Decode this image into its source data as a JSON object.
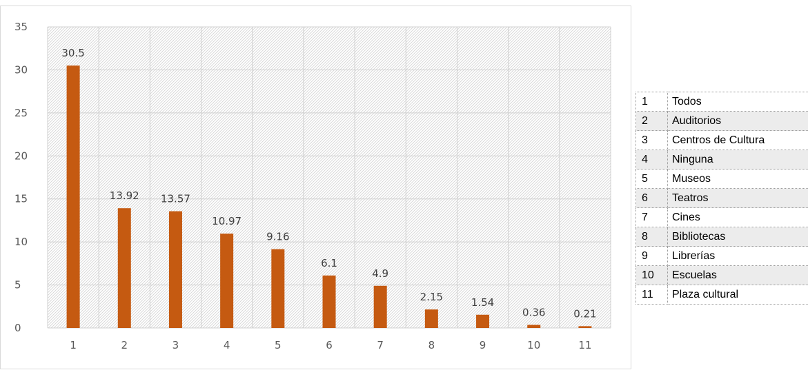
{
  "chart_data": {
    "type": "bar",
    "categories": [
      "1",
      "2",
      "3",
      "4",
      "5",
      "6",
      "7",
      "8",
      "9",
      "10",
      "11"
    ],
    "values": [
      30.5,
      13.92,
      13.57,
      10.97,
      9.16,
      6.1,
      4.9,
      2.15,
      1.54,
      0.36,
      0.21
    ],
    "data_labels": [
      "30.5",
      "13.92",
      "13.57",
      "10.97",
      "9.16",
      "6.1",
      "4.9",
      "2.15",
      "1.54",
      "0.36",
      "0.21"
    ],
    "y_ticks": [
      "0",
      "5",
      "10",
      "15",
      "20",
      "25",
      "30",
      "35"
    ],
    "ylim": [
      0,
      35
    ],
    "bar_color": "#C55A11",
    "grid": true,
    "title": "",
    "xlabel": "",
    "ylabel": ""
  },
  "legend_table": [
    {
      "num": "1",
      "label": "Todos"
    },
    {
      "num": "2",
      "label": "Auditorios"
    },
    {
      "num": "3",
      "label": "Centros de Cultura"
    },
    {
      "num": "4",
      "label": "Ninguna"
    },
    {
      "num": "5",
      "label": "Museos"
    },
    {
      "num": "6",
      "label": "Teatros"
    },
    {
      "num": "7",
      "label": "Cines"
    },
    {
      "num": "8",
      "label": "Bibliotecas"
    },
    {
      "num": "9",
      "label": "Librerías"
    },
    {
      "num": "10",
      "label": "Escuelas"
    },
    {
      "num": "11",
      "label": "Plaza cultural"
    }
  ]
}
